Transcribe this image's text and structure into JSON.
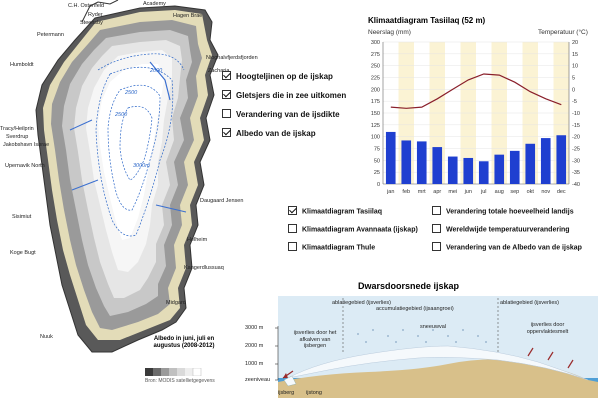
{
  "map": {
    "places": [
      "C.H. Ostenfeld",
      "Ryder",
      "Steensby",
      "Academy",
      "Hagen Brae",
      "Petermann",
      "Humboldt",
      "Nioghalvfjerdsfjorden",
      "Zacharia",
      "Tracy/Heilprin",
      "Sverdrup",
      "Jakobshavn Isbrae",
      "Upernavik North",
      "Daugaard Jensen",
      "Sisimiut",
      "Kangerdlussuaq",
      "Helheim",
      "Koge Bugt",
      "Midgard",
      "Nuuk"
    ],
    "contour_labels": [
      "2500",
      "3000m",
      "2500",
      "2000"
    ],
    "legend_title": "Albedo in juni, juli en augustus (2008-2012)",
    "source": "Bron: MODIS satellietgegevens"
  },
  "map_options": [
    {
      "label": "Hoogteljinen op de ijskap",
      "checked": true
    },
    {
      "label": "Gletsjers die in zee uitkomen",
      "checked": true
    },
    {
      "label": "Verandering van de ijsdikte",
      "checked": false
    },
    {
      "label": "Albedo van de ijskap",
      "checked": true
    }
  ],
  "climate": {
    "title": "Klimaatdiagram Tasiilaq (52 m)",
    "left_axis_label": "Neerslag (mm)",
    "right_axis_label": "Temperatuur (°C)",
    "left_ticks": [
      "0",
      "25",
      "50",
      "75",
      "100",
      "125",
      "150",
      "175",
      "200",
      "225",
      "250",
      "275",
      "300"
    ],
    "right_ticks": [
      "-40",
      "-35",
      "-30",
      "-25",
      "-20",
      "-15",
      "-10",
      "-5",
      "0",
      "5",
      "10",
      "15",
      "20"
    ]
  },
  "chart_data": {
    "type": "bar",
    "title": "Klimaatdiagram Tasiilaq (52 m)",
    "categories": [
      "jan",
      "feb",
      "mrt",
      "apr",
      "mei",
      "jun",
      "jul",
      "aug",
      "sep",
      "okt",
      "nov",
      "dec"
    ],
    "series": [
      {
        "values": [
          110,
          92,
          90,
          78,
          58,
          55,
          48,
          62,
          70,
          85,
          97,
          103
        ]
      },
      {
        "values": [
          -7.5,
          -8,
          -7.5,
          -4,
          0,
          4,
          6.5,
          6,
          3,
          -1,
          -4,
          -6.5
        ]
      }
    ],
    "ylabel": "Neerslag (mm)",
    "y2label": "Temperatuur (°C)",
    "ylim": [
      0,
      300
    ],
    "y2lim": [
      -40,
      20
    ]
  },
  "climate_options": [
    {
      "label": "Klimaatdiagram Tasiilaq",
      "checked": true
    },
    {
      "label": "Klimaatdiagram Avannaata (ijskap)",
      "checked": false
    },
    {
      "label": "Klimaatdiagram Thule",
      "checked": false
    },
    {
      "label": "Verandering totale hoeveelheid landijs",
      "checked": false
    },
    {
      "label": "Wereldwijde temperatuurverandering",
      "checked": false
    },
    {
      "label": "Verandering van de Albedo van de ijskap",
      "checked": false
    }
  ],
  "cross": {
    "title": "Dwarsdoorsnede ijskap",
    "ablatie_left": "ablatiegebied (ijsverlies)",
    "accumulatie": "accumulatiegebied (ijsaangroei)",
    "ablatie_right": "ablatiegebied (ijsverlies)",
    "sneeuwval": "sneeuwval",
    "left_note": "ijsverlies door het afkalven van ijsbergen",
    "right_note": "ijsverlies door oppervlaktesmelt",
    "heights": [
      "3000 m",
      "2000 m",
      "1000 m",
      "zeeniveau"
    ],
    "ijsberg": "ijsberg",
    "ijstong": "ijstong"
  }
}
